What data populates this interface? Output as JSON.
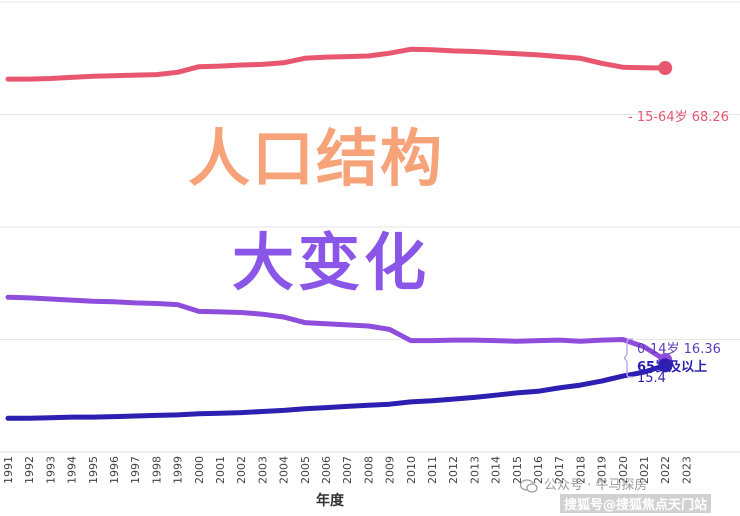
{
  "chart_data": {
    "type": "line",
    "title": "人口结构",
    "subtitle": "大变化",
    "xlabel": "年度",
    "ylabel": "",
    "ylim": [
      0,
      80
    ],
    "grid": true,
    "x": [
      "1991",
      "1992",
      "1993",
      "1994",
      "1995",
      "1996",
      "1997",
      "1998",
      "1999",
      "2000",
      "2001",
      "2002",
      "2003",
      "2004",
      "2005",
      "2006",
      "2007",
      "2008",
      "2009",
      "2010",
      "2011",
      "2012",
      "2013",
      "2014",
      "2015",
      "2016",
      "2017",
      "2018",
      "2019",
      "2020",
      "2021",
      "2022",
      "2023"
    ],
    "series": [
      {
        "name": "15-64岁",
        "color": "#e8566f",
        "values": [
          66.3,
          66.3,
          66.4,
          66.6,
          66.8,
          66.9,
          67.0,
          67.1,
          67.5,
          68.5,
          68.6,
          68.8,
          68.9,
          69.2,
          70.0,
          70.2,
          70.3,
          70.4,
          70.9,
          71.6,
          71.5,
          71.3,
          71.2,
          71.0,
          70.8,
          70.6,
          70.3,
          70.0,
          69.1,
          68.4,
          68.3,
          68.26,
          null
        ],
        "end_label": "68.26"
      },
      {
        "name": "0-14岁",
        "color": "#8f4ddc",
        "values": [
          27.5,
          27.4,
          27.2,
          27.0,
          26.8,
          26.7,
          26.5,
          26.4,
          26.2,
          25.0,
          24.9,
          24.8,
          24.5,
          24.0,
          23.0,
          22.8,
          22.6,
          22.4,
          21.8,
          19.8,
          19.8,
          19.9,
          19.9,
          19.8,
          19.7,
          19.8,
          19.9,
          19.7,
          19.9,
          20.0,
          18.7,
          16.36,
          null
        ],
        "end_label": "16.36"
      },
      {
        "name": "65岁及以上",
        "color": "#2d1fb0",
        "values": [
          6.0,
          6.0,
          6.1,
          6.2,
          6.2,
          6.3,
          6.4,
          6.5,
          6.6,
          6.8,
          6.9,
          7.0,
          7.2,
          7.4,
          7.7,
          7.9,
          8.1,
          8.3,
          8.5,
          8.9,
          9.1,
          9.4,
          9.7,
          10.1,
          10.5,
          10.8,
          11.4,
          11.9,
          12.6,
          13.5,
          14.2,
          15.4,
          null
        ],
        "end_label": "15.4"
      }
    ]
  },
  "labels": {
    "s1_prefix": "- 15-64岁",
    "s1_value": "68.26",
    "s2_prefix": "0-14岁",
    "s2_value": "16.36",
    "s3_line1": "65岁及以上",
    "s3_line2": "15.4"
  },
  "watermark": {
    "text": "公众号 · 牛马探房",
    "footer": "搜狐号@搜狐焦点天门站"
  }
}
